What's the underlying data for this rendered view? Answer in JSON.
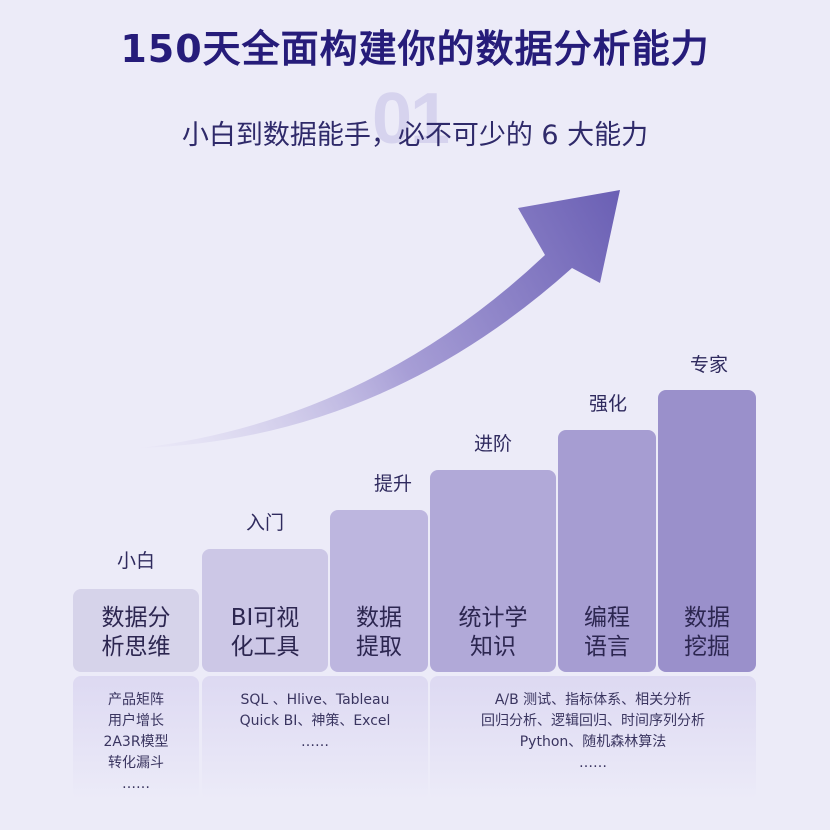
{
  "header": {
    "title": "150天全面构建你的数据分析能力",
    "watermark": "01",
    "subtitle": "小白到数据能手，必不可少的 6 大能力"
  },
  "levels": [
    "小白",
    "入门",
    "提升",
    "进阶",
    "强化",
    "专家"
  ],
  "steps": [
    {
      "label": "数据分\n析思维",
      "color": "#d6d3ea"
    },
    {
      "label": "BI可视\n化工具",
      "color": "#ccc7e6"
    },
    {
      "label": "数据\n提取",
      "color": "#bdb6df"
    },
    {
      "label": "统计学\n知识",
      "color": "#b1a9d8"
    },
    {
      "label": "编程\n语言",
      "color": "#a69dd2"
    },
    {
      "label": "数据\n挖掘",
      "color": "#9a90cb"
    }
  ],
  "details": [
    {
      "lines": [
        "产品矩阵",
        "用户增长",
        "2A3R模型",
        "转化漏斗",
        "……"
      ]
    },
    {
      "lines": [
        "SQL 、Hlive、Tableau",
        "Quick BI、神策、Excel",
        "……"
      ]
    },
    {
      "lines": [
        "A/B 测试、指标体系、相关分析",
        "回归分析、逻辑回归、时间序列分析",
        "Python、随机森林算法",
        "……"
      ]
    }
  ],
  "colors": {
    "title": "#261c7a",
    "arrow_start": "#ddd9f2",
    "arrow_end": "#6a5fb4"
  }
}
